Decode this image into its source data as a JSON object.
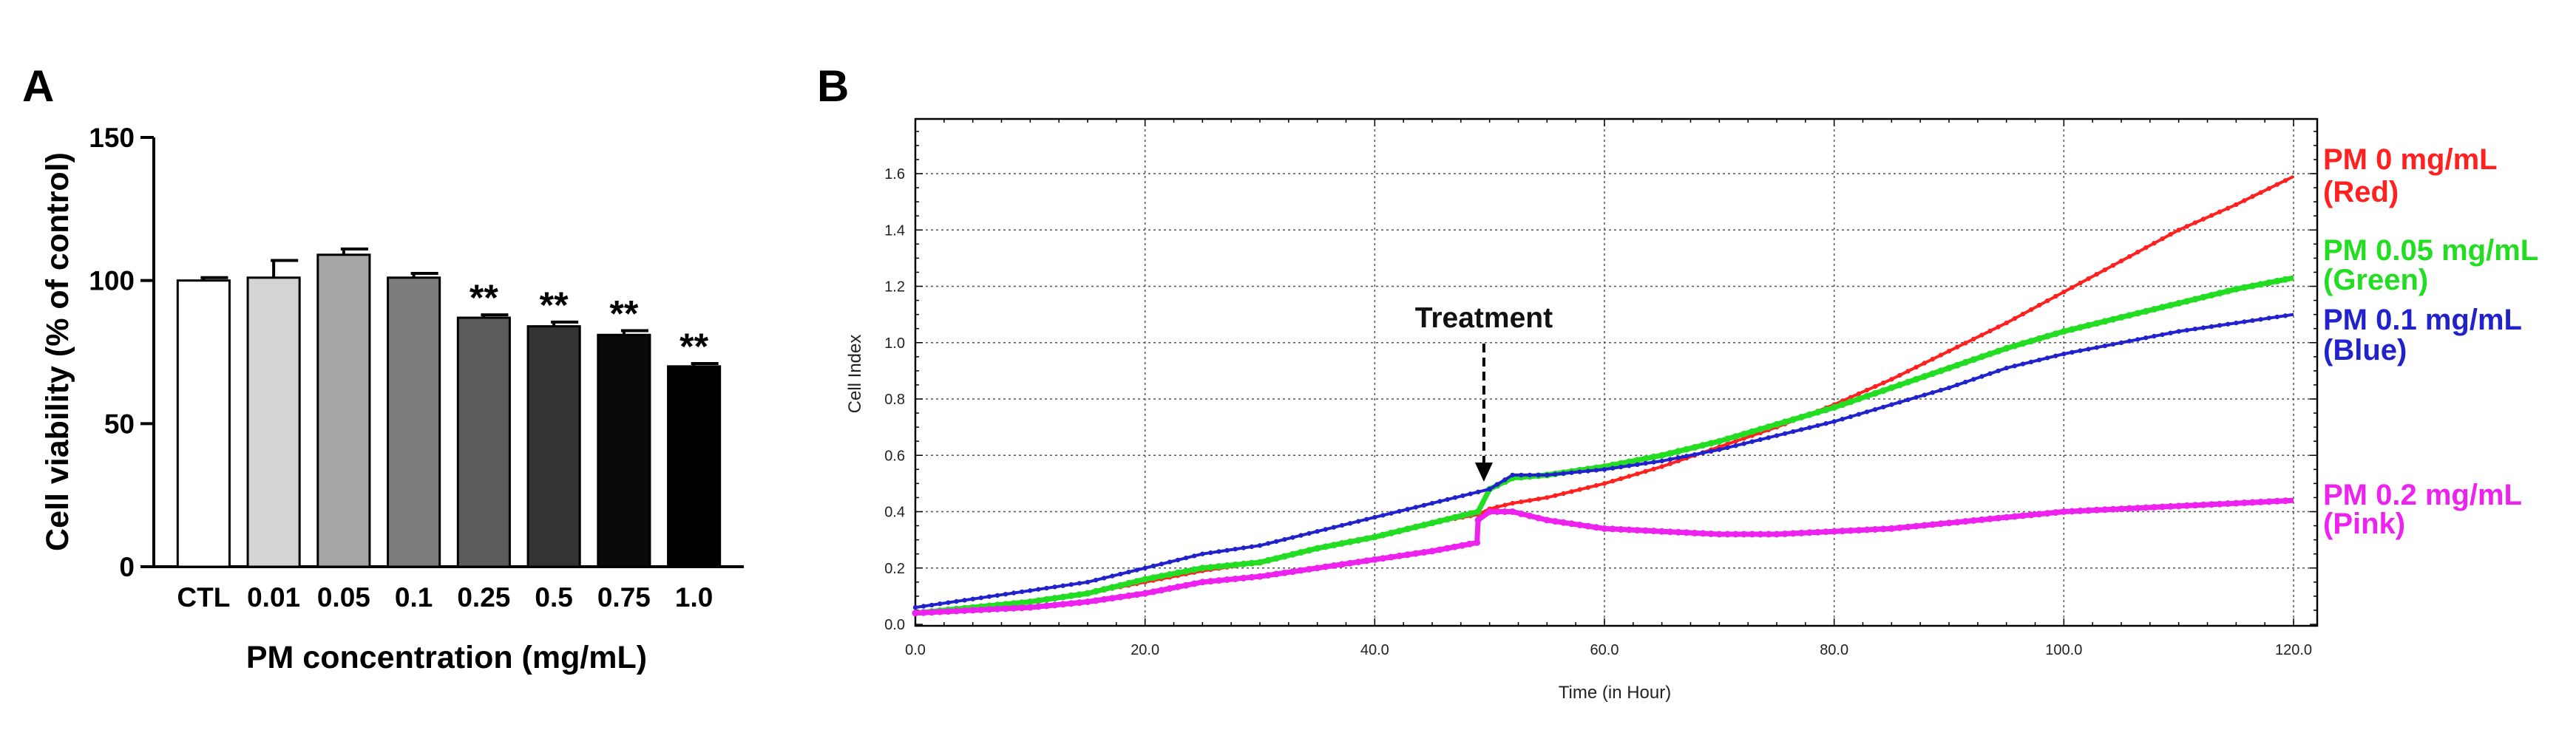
{
  "figure": {
    "panel_a_label": "A",
    "panel_b_label": "B"
  },
  "chart_data": [
    {
      "panel": "A",
      "type": "bar",
      "title": "",
      "xlabel": "PM concentration (mg/mL)",
      "ylabel": "Cell viability (% of control)",
      "ylim": [
        0,
        150
      ],
      "yticks": [
        0,
        50,
        100,
        150
      ],
      "categories": [
        "CTL",
        "0.01",
        "0.05",
        "0.1",
        "0.25",
        "0.5",
        "0.75",
        "1.0"
      ],
      "values": [
        100,
        101,
        109,
        101,
        87,
        84,
        81,
        70
      ],
      "errors": [
        1,
        6,
        2,
        1.5,
        1,
        1.5,
        1.5,
        1
      ],
      "significance": [
        "",
        "",
        "",
        "",
        "**",
        "**",
        "**",
        "**"
      ],
      "bar_colors": [
        "#ffffff",
        "#d4d4d4",
        "#a6a6a6",
        "#7c7c7c",
        "#5b5b5b",
        "#333333",
        "#0a0a0a",
        "#000000"
      ]
    },
    {
      "panel": "B",
      "type": "line",
      "title": "",
      "xlabel": "Time (in Hour)",
      "ylabel": "Cell Index",
      "xlim": [
        0,
        122
      ],
      "ylim": [
        0,
        1.8
      ],
      "xticks": [
        "0.0",
        "20.0",
        "40.0",
        "60.0",
        "80.0",
        "100.0",
        "120.0"
      ],
      "yticks": [
        "0.0",
        "0.2",
        "0.4",
        "0.6",
        "0.8",
        "1.0",
        "1.2",
        "1.4",
        "1.6"
      ],
      "grid": true,
      "annotation": {
        "text": "Treatment",
        "x": 49.5
      },
      "series": [
        {
          "name": "PM 0 mg/mL",
          "color_name": "(Red)",
          "color": "#ff2020",
          "x": [
            0,
            5,
            10,
            15,
            20,
            25,
            30,
            35,
            40,
            45,
            49,
            50,
            52,
            55,
            60,
            65,
            70,
            75,
            80,
            85,
            90,
            95,
            100,
            105,
            110,
            115,
            120
          ],
          "y": [
            0.04,
            0.06,
            0.08,
            0.11,
            0.15,
            0.19,
            0.22,
            0.27,
            0.31,
            0.36,
            0.39,
            0.41,
            0.43,
            0.45,
            0.5,
            0.56,
            0.63,
            0.7,
            0.78,
            0.87,
            0.97,
            1.07,
            1.18,
            1.29,
            1.4,
            1.49,
            1.59
          ]
        },
        {
          "name": "PM 0.05 mg/mL",
          "color_name": "(Green)",
          "color": "#22dd22",
          "x": [
            0,
            5,
            10,
            15,
            20,
            25,
            30,
            35,
            40,
            45,
            49,
            50,
            52,
            55,
            60,
            65,
            70,
            75,
            80,
            85,
            90,
            95,
            100,
            105,
            110,
            115,
            120
          ],
          "y": [
            0.04,
            0.06,
            0.08,
            0.11,
            0.16,
            0.2,
            0.22,
            0.27,
            0.31,
            0.36,
            0.4,
            0.48,
            0.52,
            0.53,
            0.56,
            0.6,
            0.65,
            0.71,
            0.77,
            0.84,
            0.91,
            0.98,
            1.04,
            1.09,
            1.14,
            1.19,
            1.23
          ]
        },
        {
          "name": "PM 0.1 mg/mL",
          "color_name": "(Blue)",
          "color": "#2222cc",
          "x": [
            0,
            5,
            10,
            15,
            20,
            25,
            30,
            35,
            40,
            45,
            49,
            50,
            52,
            55,
            60,
            65,
            70,
            75,
            80,
            85,
            90,
            95,
            100,
            105,
            110,
            115,
            120
          ],
          "y": [
            0.06,
            0.09,
            0.12,
            0.15,
            0.2,
            0.25,
            0.28,
            0.33,
            0.38,
            0.43,
            0.47,
            0.48,
            0.53,
            0.53,
            0.55,
            0.58,
            0.62,
            0.67,
            0.72,
            0.78,
            0.84,
            0.91,
            0.96,
            1.0,
            1.04,
            1.07,
            1.1
          ]
        },
        {
          "name": "PM 0.2 mg/mL",
          "color_name": "(Pink)",
          "color": "#ee22ee",
          "x": [
            0,
            5,
            10,
            15,
            20,
            25,
            30,
            35,
            40,
            45,
            48.9,
            49,
            50,
            52,
            55,
            60,
            65,
            70,
            75,
            80,
            85,
            90,
            95,
            100,
            105,
            110,
            115,
            120
          ],
          "y": [
            0.04,
            0.05,
            0.06,
            0.08,
            0.11,
            0.15,
            0.17,
            0.2,
            0.23,
            0.26,
            0.29,
            0.37,
            0.4,
            0.4,
            0.37,
            0.34,
            0.33,
            0.32,
            0.32,
            0.33,
            0.34,
            0.36,
            0.38,
            0.4,
            0.41,
            0.42,
            0.43,
            0.44
          ]
        }
      ]
    }
  ]
}
